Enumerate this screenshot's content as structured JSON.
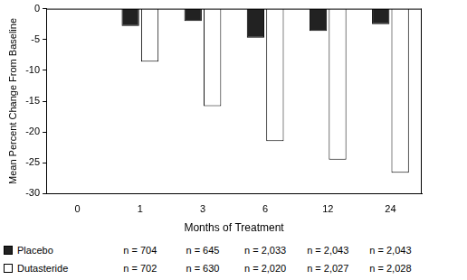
{
  "chart_data": {
    "type": "bar",
    "x_label": "Months of Treatment",
    "y_label": "Mean Percent Change From Baseline",
    "categories": [
      "0",
      "1",
      "3",
      "6",
      "12",
      "24"
    ],
    "series": [
      {
        "name": "Placebo",
        "color": "#222222",
        "values": [
          null,
          -2.8,
          -2.0,
          -4.7,
          -3.6,
          -2.5
        ],
        "n_labels": [
          null,
          "n = 704",
          "n = 645",
          "n = 2,033",
          "n = 2,043",
          "n = 2,043"
        ]
      },
      {
        "name": "Dutasteride",
        "color": "#ffffff",
        "values": [
          null,
          -8.6,
          -15.8,
          -21.5,
          -24.5,
          -26.6
        ],
        "n_labels": [
          null,
          "n = 702",
          "n = 630",
          "n = 2,020",
          "n = 2,027",
          "n = 2,028"
        ]
      }
    ],
    "ylim": [
      -30,
      0
    ],
    "yticks": [
      -30,
      -25,
      -20,
      -15,
      -10,
      -5,
      0
    ],
    "grid": false
  }
}
